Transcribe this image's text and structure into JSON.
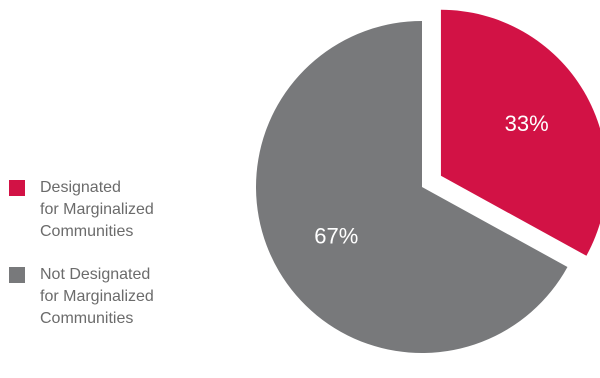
{
  "chart_data": {
    "type": "pie",
    "slices": [
      {
        "label": "Designated\nfor Marginalized\nCommunities",
        "value": 33,
        "display": "33%",
        "color": "#d21245"
      },
      {
        "label": "Not Designated\nfor Marginalized\nCommunities",
        "value": 67,
        "display": "67%",
        "color": "#78797b"
      }
    ],
    "legend_position": "left",
    "exploded_slice": 0
  }
}
